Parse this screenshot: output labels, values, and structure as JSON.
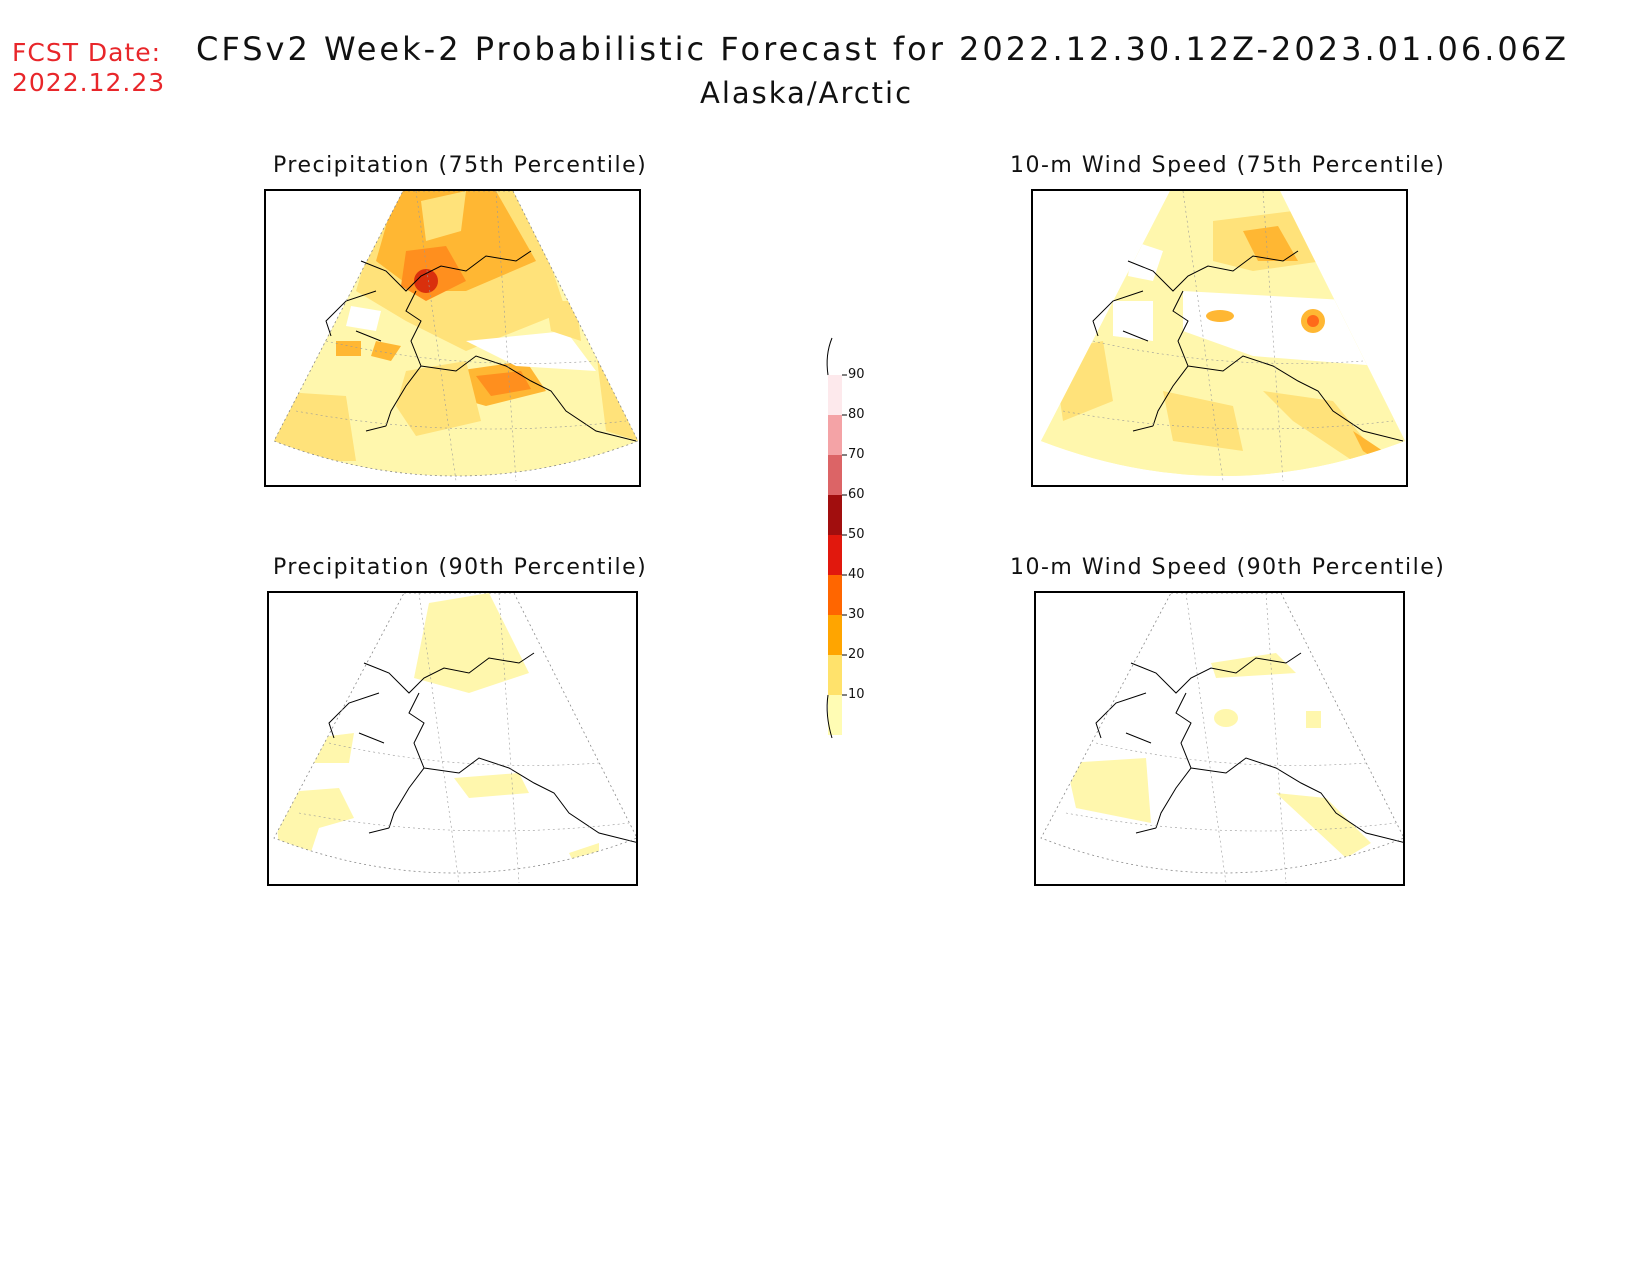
{
  "fcst": {
    "label": "FCST Date:",
    "date": "2022.12.23"
  },
  "title": {
    "main": "CFSv2 Week-2 Probabilistic Forecast for 2022.12.30.12Z-2023.01.06.06Z",
    "region": "Alaska/Arctic"
  },
  "panels": [
    {
      "id": "precip75",
      "title": "Precipitation (75th Percentile)"
    },
    {
      "id": "wind75",
      "title": "10-m Wind Speed (75th Percentile)"
    },
    {
      "id": "precip90",
      "title": "Precipitation (90th Percentile)"
    },
    {
      "id": "wind90",
      "title": "10-m Wind Speed (90th Percentile)"
    }
  ],
  "colorbar": {
    "ticks": [
      "90",
      "80",
      "70",
      "60",
      "50",
      "40",
      "30",
      "20",
      "10"
    ],
    "colors": [
      "#fde9ec",
      "#f4a3a6",
      "#dc6466",
      "#a10e0e",
      "#e1180d",
      "#ff6600",
      "#ffa500",
      "#ffe26b",
      "#fffcb4"
    ]
  }
}
